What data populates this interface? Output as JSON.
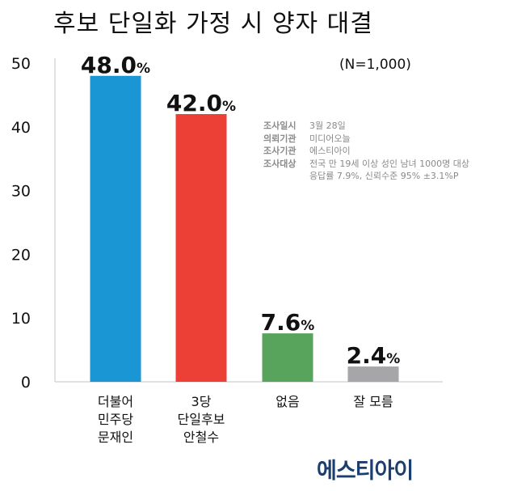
{
  "title": "후보 단일화 가정 시 양자 대결",
  "n_label": "(N=1,000)",
  "info": {
    "rows": [
      {
        "key": "조사일시",
        "value": "3월 28일"
      },
      {
        "key": "의뢰기관",
        "value": "미디어오늘"
      },
      {
        "key": "조사기관",
        "value": "에스티아이"
      },
      {
        "key": "조사대상",
        "value": "전국 만 19세 이상 성인 남녀 1000명 대상"
      }
    ],
    "continuation": "응답률 7.9%, 신뢰수준 95% ±3.1%P"
  },
  "logo": "에스티아이",
  "chart_data": {
    "type": "bar",
    "categories": [
      [
        "더불어",
        "민주당",
        "문재인"
      ],
      [
        "3당",
        "단일후보",
        "안철수"
      ],
      [
        "없음"
      ],
      [
        "잘 모름"
      ]
    ],
    "values": [
      48.0,
      42.0,
      7.6,
      2.4
    ],
    "value_labels": [
      "48.0",
      "42.0",
      "7.6",
      "2.4"
    ],
    "value_suffix": "%",
    "colors": [
      "#1b96d4",
      "#ec3f35",
      "#58a45c",
      "#a6a6a8"
    ],
    "ylim": [
      0,
      50
    ],
    "yticks": [
      0,
      10,
      20,
      30,
      40,
      50
    ],
    "grid": false
  }
}
